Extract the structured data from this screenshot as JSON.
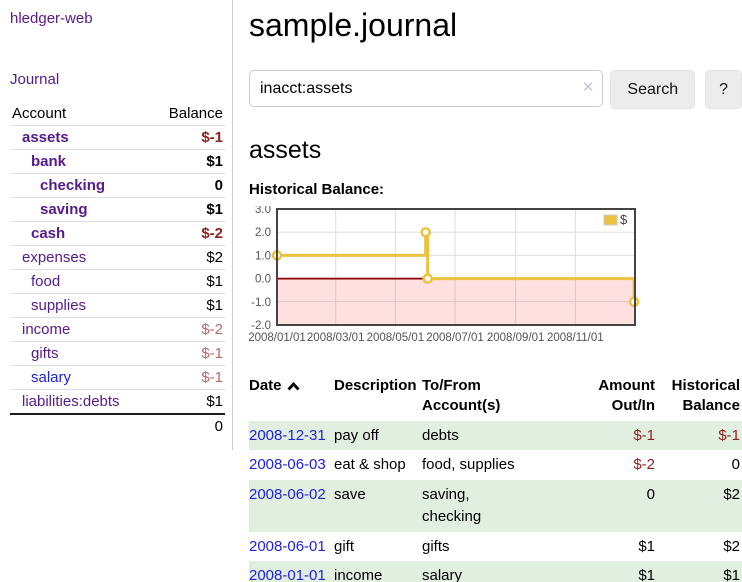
{
  "app": {
    "brand": "hledger-web",
    "nav_journal": "Journal"
  },
  "sidebar": {
    "columns": {
      "account": "Account",
      "balance": "Balance"
    },
    "accounts": [
      {
        "name": "assets",
        "balance": "$-1"
      },
      {
        "name": "bank",
        "balance": "$1"
      },
      {
        "name": "checking",
        "balance": "0"
      },
      {
        "name": "saving",
        "balance": "$1"
      },
      {
        "name": "cash",
        "balance": "$-2"
      },
      {
        "name": "expenses",
        "balance": "$2"
      },
      {
        "name": "food",
        "balance": "$1"
      },
      {
        "name": "supplies",
        "balance": "$1"
      },
      {
        "name": "income",
        "balance": "$-2"
      },
      {
        "name": "gifts",
        "balance": "$-1"
      },
      {
        "name": "salary",
        "balance": "$-1"
      },
      {
        "name": "liabilities:debts",
        "balance": "$1"
      }
    ],
    "total": "0"
  },
  "header": {
    "title": "sample.journal"
  },
  "search": {
    "value": "inacct:assets",
    "clear_glyph": "✕",
    "button_label": "Search",
    "help_label": "?"
  },
  "icons": {
    "search_clear": "x-icon",
    "date_sort": "chevron-up-icon",
    "legend_swatch": "gold-square"
  },
  "account_page": {
    "heading": "assets",
    "chart_label": "Historical Balance:"
  },
  "chart_data": {
    "type": "line",
    "title": "Historical Balance:",
    "series": [
      {
        "name": "$",
        "color": "#EDC240",
        "step": true,
        "points": [
          [
            "2008/01/01",
            1
          ],
          [
            "2008/06/01",
            2
          ],
          [
            "2008/06/03",
            0
          ],
          [
            "2008/12/31",
            -1
          ]
        ]
      }
    ],
    "xlim": [
      "2008/01/01",
      "2009/01/01"
    ],
    "ylim": [
      -2,
      3
    ],
    "y_ticks": [
      "3.0",
      "2.0",
      "1.0",
      "0.0",
      "-1.0",
      "-2.0"
    ],
    "x_ticks": [
      "2008/01/01",
      "2008/03/01",
      "2008/05/01",
      "2008/07/01",
      "2008/09/01",
      "2008/11/01"
    ],
    "grid": true,
    "legend_position": "top-right",
    "zero_line_color": "#8b0000",
    "negative_region_color": "rgba(255,0,0,0.12)"
  },
  "register": {
    "columns": {
      "date": "Date",
      "description": "Description",
      "account": "To/From\nAccount(s)",
      "amount": "Amount\nOut/In",
      "balance": "Historical\nBalance"
    },
    "rows": [
      {
        "date": "2008-12-31",
        "description": "pay off",
        "account": "debts",
        "amount": "$-1",
        "balance": "$-1"
      },
      {
        "date": "2008-06-03",
        "description": "eat & shop",
        "account": "food, supplies",
        "amount": "$-2",
        "balance": "0"
      },
      {
        "date": "2008-06-02",
        "description": "save",
        "account": "saving,\nchecking",
        "amount": "0",
        "balance": "$2"
      },
      {
        "date": "2008-06-01",
        "description": "gift",
        "account": "gifts",
        "amount": "$1",
        "balance": "$2"
      },
      {
        "date": "2008-01-01",
        "description": "income",
        "account": "salary",
        "amount": "$1",
        "balance": "$1"
      }
    ]
  }
}
